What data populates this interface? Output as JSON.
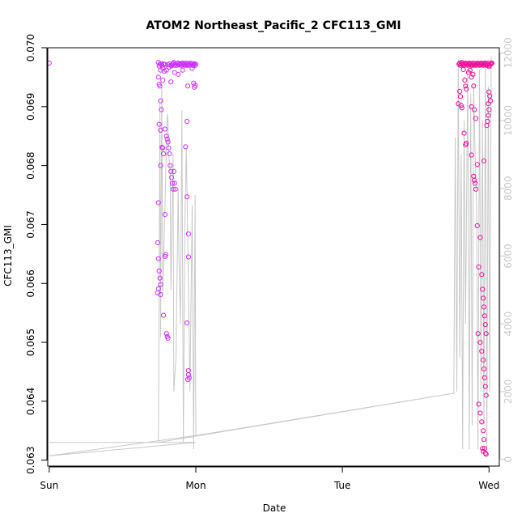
{
  "chart_data": {
    "type": "scatter",
    "title": "ATOM2 Northeast_Pacific_2 CFC113_GMI",
    "xlabel": "Date",
    "ylabel": "CFC113_GMI",
    "x_ticks": [
      "Sun",
      "Mon",
      "Tue",
      "Wed"
    ],
    "y_ticks": [
      "0.063",
      "0.064",
      "0.065",
      "0.066",
      "0.067",
      "0.068",
      "0.069",
      "0.070"
    ],
    "y2_ticks": [
      "0",
      "2000",
      "4000",
      "6000",
      "8000",
      "10000",
      "12000"
    ],
    "xlim": [
      -0.01,
      3.07
    ],
    "ylim": [
      0.0629,
      0.07
    ],
    "y2lim": [
      -200,
      12150
    ],
    "colors": {
      "points_day2": "#cc33ff",
      "points_day4": "#ee1199",
      "altitude_line": "#c8c8c8",
      "right_axis": "#c8c8c8",
      "axes": "#000000"
    },
    "series": [
      {
        "values": [
          [
            0.0,
            0.06974
          ],
          [
            0.745,
            0.06975
          ],
          [
            0.75,
            0.06969
          ],
          [
            0.755,
            0.06972
          ],
          [
            0.76,
            0.06962
          ],
          [
            0.765,
            0.06973
          ],
          [
            0.77,
            0.0697
          ],
          [
            0.775,
            0.06965
          ],
          [
            0.78,
            0.06972
          ],
          [
            0.785,
            0.0696
          ],
          [
            0.79,
            0.06972
          ],
          [
            0.8,
            0.06962
          ],
          [
            0.81,
            0.06971
          ],
          [
            0.815,
            0.06967
          ],
          [
            0.82,
            0.06973
          ],
          [
            0.83,
            0.0697
          ],
          [
            0.835,
            0.06969
          ],
          [
            0.84,
            0.06972
          ],
          [
            0.845,
            0.06973
          ],
          [
            0.85,
            0.06975
          ],
          [
            0.855,
            0.0697
          ],
          [
            0.86,
            0.06972
          ],
          [
            0.87,
            0.0697
          ],
          [
            0.875,
            0.06973
          ],
          [
            0.88,
            0.06974
          ],
          [
            0.885,
            0.06971
          ],
          [
            0.89,
            0.06972
          ],
          [
            0.895,
            0.06973
          ],
          [
            0.9,
            0.0697
          ],
          [
            0.905,
            0.06972
          ],
          [
            0.91,
            0.06974
          ],
          [
            0.915,
            0.06971
          ],
          [
            0.92,
            0.06973
          ],
          [
            0.925,
            0.0697
          ],
          [
            0.93,
            0.06972
          ],
          [
            0.935,
            0.06974
          ],
          [
            0.94,
            0.0697
          ],
          [
            0.945,
            0.06972
          ],
          [
            0.95,
            0.06973
          ],
          [
            0.955,
            0.0697
          ],
          [
            0.96,
            0.06972
          ],
          [
            0.965,
            0.06974
          ],
          [
            0.97,
            0.06971
          ],
          [
            0.975,
            0.06972
          ],
          [
            0.98,
            0.0697
          ],
          [
            0.985,
            0.06972
          ],
          [
            0.99,
            0.06973
          ],
          [
            0.995,
            0.0697
          ],
          [
            1.0,
            0.06972
          ],
          [
            0.745,
            0.0695
          ],
          [
            0.75,
            0.06938
          ],
          [
            0.755,
            0.06935
          ],
          [
            0.76,
            0.0691
          ],
          [
            0.765,
            0.06895
          ],
          [
            0.775,
            0.06945
          ],
          [
            0.83,
            0.06942
          ],
          [
            0.855,
            0.06958
          ],
          [
            0.88,
            0.06955
          ],
          [
            0.91,
            0.06962
          ],
          [
            0.945,
            0.06935
          ],
          [
            0.975,
            0.06965
          ],
          [
            0.985,
            0.0694
          ],
          [
            0.99,
            0.06933
          ],
          [
            0.995,
            0.06936
          ],
          [
            0.75,
            0.0687
          ],
          [
            0.76,
            0.0686
          ],
          [
            0.77,
            0.06831
          ],
          [
            0.775,
            0.0683
          ],
          [
            0.78,
            0.0682
          ],
          [
            0.79,
            0.06862
          ],
          [
            0.8,
            0.0685
          ],
          [
            0.805,
            0.06845
          ],
          [
            0.81,
            0.0684
          ],
          [
            0.815,
            0.0683
          ],
          [
            0.82,
            0.0682
          ],
          [
            0.825,
            0.068
          ],
          [
            0.83,
            0.0679
          ],
          [
            0.835,
            0.0678
          ],
          [
            0.84,
            0.0677
          ],
          [
            0.845,
            0.0676
          ],
          [
            0.85,
            0.0679
          ],
          [
            0.855,
            0.0677
          ],
          [
            0.86,
            0.0676
          ],
          [
            0.94,
            0.06875
          ],
          [
            0.93,
            0.06832
          ],
          [
            0.76,
            0.068
          ],
          [
            0.745,
            0.06737
          ],
          [
            0.79,
            0.06717
          ],
          [
            0.94,
            0.06747
          ],
          [
            0.95,
            0.06684
          ],
          [
            0.74,
            0.06669
          ],
          [
            0.745,
            0.06642
          ],
          [
            0.75,
            0.06621
          ],
          [
            0.755,
            0.06609
          ],
          [
            0.76,
            0.06598
          ],
          [
            0.745,
            0.06591
          ],
          [
            0.74,
            0.06584
          ],
          [
            0.76,
            0.06581
          ],
          [
            0.795,
            0.06649
          ],
          [
            0.79,
            0.06646
          ],
          [
            0.95,
            0.06645
          ],
          [
            0.78,
            0.06546
          ],
          [
            0.8,
            0.06515
          ],
          [
            0.805,
            0.0651
          ],
          [
            0.81,
            0.06507
          ],
          [
            0.94,
            0.06533
          ],
          [
            0.95,
            0.06445
          ],
          [
            0.955,
            0.0644
          ],
          [
            0.945,
            0.06437
          ],
          [
            0.95,
            0.06452
          ]
        ]
      },
      {
        "values": [
          [
            2.795,
            0.06972
          ],
          [
            2.8,
            0.06974
          ],
          [
            2.805,
            0.0697
          ],
          [
            2.81,
            0.06973
          ],
          [
            2.815,
            0.06975
          ],
          [
            2.82,
            0.06971
          ],
          [
            2.825,
            0.06973
          ],
          [
            2.83,
            0.0697
          ],
          [
            2.835,
            0.06972
          ],
          [
            2.84,
            0.06974
          ],
          [
            2.845,
            0.06971
          ],
          [
            2.85,
            0.06973
          ],
          [
            2.855,
            0.0697
          ],
          [
            2.86,
            0.06972
          ],
          [
            2.865,
            0.06974
          ],
          [
            2.87,
            0.06971
          ],
          [
            2.875,
            0.06973
          ],
          [
            2.88,
            0.0697
          ],
          [
            2.885,
            0.06972
          ],
          [
            2.89,
            0.06974
          ],
          [
            2.895,
            0.0697
          ],
          [
            2.9,
            0.06972
          ],
          [
            2.905,
            0.06973
          ],
          [
            2.91,
            0.0697
          ],
          [
            2.915,
            0.06972
          ],
          [
            2.92,
            0.06974
          ],
          [
            2.925,
            0.06971
          ],
          [
            2.93,
            0.06973
          ],
          [
            2.935,
            0.0697
          ],
          [
            2.94,
            0.06972
          ],
          [
            2.945,
            0.06974
          ],
          [
            2.95,
            0.06971
          ],
          [
            2.955,
            0.06973
          ],
          [
            2.96,
            0.0697
          ],
          [
            2.965,
            0.06972
          ],
          [
            2.97,
            0.06974
          ],
          [
            2.975,
            0.06971
          ],
          [
            2.98,
            0.06973
          ],
          [
            2.985,
            0.0697
          ],
          [
            2.99,
            0.06972
          ],
          [
            2.995,
            0.06974
          ],
          [
            3.0,
            0.06968
          ],
          [
            3.005,
            0.0697
          ],
          [
            3.01,
            0.06972
          ],
          [
            3.015,
            0.06973
          ],
          [
            3.02,
            0.06974
          ],
          [
            2.825,
            0.06963
          ],
          [
            2.835,
            0.06945
          ],
          [
            2.84,
            0.06935
          ],
          [
            2.845,
            0.0693
          ],
          [
            2.86,
            0.06958
          ],
          [
            2.87,
            0.06962
          ],
          [
            2.88,
            0.0695
          ],
          [
            2.89,
            0.06955
          ],
          [
            2.895,
            0.06935
          ],
          [
            2.8,
            0.06926
          ],
          [
            2.805,
            0.06917
          ],
          [
            2.81,
            0.06902
          ],
          [
            2.815,
            0.06898
          ],
          [
            2.79,
            0.06905
          ],
          [
            2.88,
            0.069
          ],
          [
            2.9,
            0.06895
          ],
          [
            2.91,
            0.0688
          ],
          [
            3.0,
            0.06925
          ],
          [
            3.005,
            0.06918
          ],
          [
            3.01,
            0.0691
          ],
          [
            2.995,
            0.06905
          ],
          [
            3.0,
            0.06895
          ],
          [
            2.995,
            0.06885
          ],
          [
            2.99,
            0.06875
          ],
          [
            2.985,
            0.06868
          ],
          [
            2.83,
            0.06855
          ],
          [
            2.84,
            0.06835
          ],
          [
            2.845,
            0.06838
          ],
          [
            2.88,
            0.06818
          ],
          [
            2.92,
            0.06802
          ],
          [
            2.965,
            0.06808
          ],
          [
            2.895,
            0.06782
          ],
          [
            2.9,
            0.06775
          ],
          [
            2.905,
            0.0677
          ],
          [
            2.91,
            0.0676
          ],
          [
            2.92,
            0.06698
          ],
          [
            2.94,
            0.06678
          ],
          [
            2.93,
            0.06628
          ],
          [
            2.95,
            0.06615
          ],
          [
            2.955,
            0.0659
          ],
          [
            2.96,
            0.06575
          ],
          [
            2.965,
            0.0656
          ],
          [
            2.97,
            0.06545
          ],
          [
            2.975,
            0.0653
          ],
          [
            2.98,
            0.06515
          ],
          [
            2.925,
            0.06515
          ],
          [
            2.94,
            0.065
          ],
          [
            2.95,
            0.06485
          ],
          [
            2.96,
            0.0647
          ],
          [
            2.965,
            0.06455
          ],
          [
            2.97,
            0.0644
          ],
          [
            2.975,
            0.06425
          ],
          [
            2.98,
            0.0641
          ],
          [
            2.93,
            0.06395
          ],
          [
            2.94,
            0.0638
          ],
          [
            2.95,
            0.06365
          ],
          [
            2.96,
            0.0635
          ],
          [
            2.965,
            0.06335
          ],
          [
            2.97,
            0.0632
          ],
          [
            2.975,
            0.06312
          ],
          [
            2.98,
            0.0631
          ],
          [
            2.96,
            0.06315
          ],
          [
            2.955,
            0.0632
          ]
        ]
      },
      {
        "values": [
          [
            0.0,
            500
          ],
          [
            1.0,
            500
          ],
          [
            0.0,
            100
          ],
          [
            1.0,
            700
          ],
          [
            2.76,
            1950
          ],
          [
            0.745,
            500
          ],
          [
            0.755,
            10500
          ],
          [
            0.76,
            3600
          ],
          [
            0.768,
            11000
          ],
          [
            0.775,
            4900
          ],
          [
            0.79,
            7500
          ],
          [
            0.805,
            10200
          ],
          [
            0.81,
            10000
          ],
          [
            0.815,
            9000
          ],
          [
            0.825,
            8500
          ],
          [
            0.83,
            5000
          ],
          [
            0.845,
            9000
          ],
          [
            0.85,
            2000
          ],
          [
            0.865,
            3000
          ],
          [
            0.88,
            8000
          ],
          [
            0.885,
            6000
          ],
          [
            0.895,
            4000
          ],
          [
            0.905,
            10300
          ],
          [
            0.915,
            500
          ],
          [
            0.925,
            6800
          ],
          [
            0.935,
            9200
          ],
          [
            0.945,
            6500
          ],
          [
            0.96,
            2000
          ],
          [
            0.975,
            7500
          ],
          [
            0.985,
            300
          ],
          [
            0.995,
            7800
          ],
          [
            1.0,
            700
          ],
          [
            2.76,
            1950
          ],
          [
            2.77,
            9500
          ],
          [
            2.78,
            2000
          ],
          [
            2.79,
            11800
          ],
          [
            2.8,
            3000
          ],
          [
            2.81,
            9000
          ],
          [
            2.82,
            300
          ],
          [
            2.83,
            10000
          ],
          [
            2.84,
            4000
          ],
          [
            2.855,
            11500
          ],
          [
            2.865,
            300
          ],
          [
            2.875,
            10800
          ],
          [
            2.885,
            1000
          ],
          [
            2.895,
            11000
          ],
          [
            2.905,
            9000
          ],
          [
            2.915,
            7500
          ],
          [
            2.925,
            300
          ],
          [
            2.935,
            11500
          ],
          [
            2.945,
            2000
          ],
          [
            2.955,
            10000
          ],
          [
            2.965,
            1000
          ],
          [
            2.975,
            11800
          ],
          [
            2.985,
            300
          ],
          [
            2.995,
            11000
          ],
          [
            3.005,
            2000
          ],
          [
            3.015,
            11900
          ]
        ]
      }
    ]
  }
}
